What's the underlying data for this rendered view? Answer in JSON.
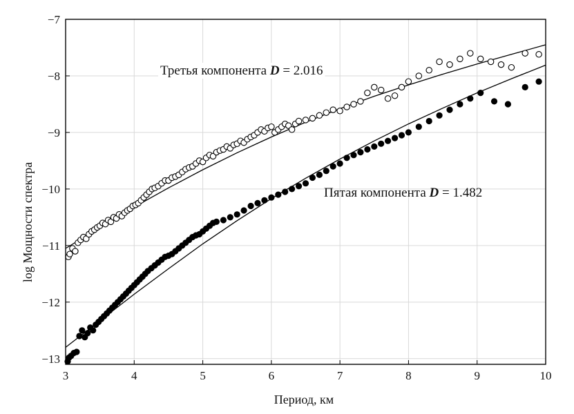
{
  "chart_data": {
    "type": "scatter",
    "title": "",
    "xlabel": "Период, км",
    "ylabel": "log Мощности спектра",
    "xlim": [
      3,
      10
    ],
    "ylim": [
      -13.1,
      -7
    ],
    "xticks": [
      3,
      4,
      5,
      6,
      7,
      8,
      9,
      10
    ],
    "yticks": [
      -13,
      -12,
      -11,
      -10,
      -9,
      -8,
      -7
    ],
    "grid": true,
    "annotations": [
      {
        "series": "third",
        "label": "Третья компонента",
        "d_symbol": "D",
        "d_value": "= 2.016"
      },
      {
        "series": "fifth",
        "label": "Пятая компонента",
        "d_symbol": "D",
        "d_value": "= 1.482"
      }
    ],
    "series": [
      {
        "id": "third",
        "marker": "open-circle",
        "color": "#000000",
        "x": [
          3.04,
          3.06,
          3.1,
          3.14,
          3.18,
          3.22,
          3.26,
          3.3,
          3.34,
          3.38,
          3.42,
          3.46,
          3.5,
          3.54,
          3.58,
          3.62,
          3.66,
          3.7,
          3.74,
          3.78,
          3.82,
          3.86,
          3.9,
          3.94,
          3.98,
          4.02,
          4.06,
          4.1,
          4.14,
          4.18,
          4.22,
          4.26,
          4.3,
          4.35,
          4.4,
          4.45,
          4.5,
          4.55,
          4.6,
          4.65,
          4.7,
          4.75,
          4.8,
          4.85,
          4.9,
          4.95,
          5.0,
          5.05,
          5.1,
          5.15,
          5.2,
          5.25,
          5.3,
          5.35,
          5.4,
          5.45,
          5.5,
          5.55,
          5.6,
          5.65,
          5.7,
          5.75,
          5.8,
          5.85,
          5.9,
          5.95,
          6.0,
          6.05,
          6.1,
          6.15,
          6.2,
          6.25,
          6.3,
          6.35,
          6.4,
          6.5,
          6.6,
          6.7,
          6.8,
          6.9,
          7.0,
          7.1,
          7.2,
          7.3,
          7.4,
          7.5,
          7.6,
          7.7,
          7.8,
          7.9,
          8.0,
          8.15,
          8.3,
          8.45,
          8.6,
          8.75,
          8.9,
          9.05,
          9.2,
          9.35,
          9.5,
          9.7,
          9.9
        ],
        "y": [
          -11.2,
          -11.15,
          -11.05,
          -11.1,
          -10.95,
          -10.9,
          -10.85,
          -10.88,
          -10.8,
          -10.75,
          -10.72,
          -10.68,
          -10.65,
          -10.6,
          -10.62,
          -10.55,
          -10.58,
          -10.5,
          -10.52,
          -10.45,
          -10.48,
          -10.42,
          -10.38,
          -10.35,
          -10.3,
          -10.28,
          -10.25,
          -10.2,
          -10.15,
          -10.1,
          -10.05,
          -10.0,
          -9.98,
          -9.95,
          -9.9,
          -9.85,
          -9.85,
          -9.8,
          -9.78,
          -9.75,
          -9.7,
          -9.65,
          -9.62,
          -9.6,
          -9.55,
          -9.5,
          -9.52,
          -9.45,
          -9.4,
          -9.42,
          -9.35,
          -9.32,
          -9.3,
          -9.25,
          -9.28,
          -9.22,
          -9.2,
          -9.15,
          -9.18,
          -9.12,
          -9.08,
          -9.05,
          -9.0,
          -8.95,
          -8.98,
          -8.92,
          -8.9,
          -9.0,
          -8.95,
          -8.9,
          -8.85,
          -8.88,
          -8.95,
          -8.85,
          -8.8,
          -8.78,
          -8.75,
          -8.7,
          -8.65,
          -8.6,
          -8.62,
          -8.55,
          -8.5,
          -8.45,
          -8.3,
          -8.2,
          -8.25,
          -8.4,
          -8.35,
          -8.2,
          -8.1,
          -8.0,
          -7.9,
          -7.75,
          -7.8,
          -7.7,
          -7.6,
          -7.7,
          -7.75,
          -7.8,
          -7.85,
          -7.6,
          -7.62
        ]
      },
      {
        "id": "fifth",
        "marker": "filled-circle",
        "color": "#000000",
        "x": [
          3.03,
          3.05,
          3.08,
          3.12,
          3.16,
          3.2,
          3.24,
          3.28,
          3.32,
          3.36,
          3.4,
          3.44,
          3.48,
          3.52,
          3.56,
          3.6,
          3.64,
          3.68,
          3.72,
          3.76,
          3.8,
          3.84,
          3.88,
          3.92,
          3.96,
          4.0,
          4.04,
          4.08,
          4.12,
          4.16,
          4.2,
          4.25,
          4.3,
          4.35,
          4.4,
          4.45,
          4.5,
          4.55,
          4.6,
          4.65,
          4.7,
          4.75,
          4.8,
          4.85,
          4.9,
          4.95,
          5.0,
          5.05,
          5.1,
          5.15,
          5.2,
          5.3,
          5.4,
          5.5,
          5.6,
          5.7,
          5.8,
          5.9,
          6.0,
          6.1,
          6.2,
          6.3,
          6.4,
          6.5,
          6.6,
          6.7,
          6.8,
          6.9,
          7.0,
          7.1,
          7.2,
          7.3,
          7.4,
          7.5,
          7.6,
          7.7,
          7.8,
          7.9,
          8.0,
          8.15,
          8.3,
          8.45,
          8.6,
          8.75,
          8.9,
          9.05,
          9.25,
          9.45,
          9.7,
          9.9
        ],
        "y": [
          -13.05,
          -12.98,
          -12.95,
          -12.9,
          -12.88,
          -12.6,
          -12.5,
          -12.62,
          -12.55,
          -12.45,
          -12.5,
          -12.4,
          -12.35,
          -12.3,
          -12.25,
          -12.2,
          -12.15,
          -12.1,
          -12.05,
          -12.0,
          -11.95,
          -11.9,
          -11.85,
          -11.8,
          -11.75,
          -11.7,
          -11.65,
          -11.6,
          -11.55,
          -11.5,
          -11.45,
          -11.4,
          -11.35,
          -11.3,
          -11.25,
          -11.2,
          -11.18,
          -11.15,
          -11.1,
          -11.05,
          -11.0,
          -10.95,
          -10.9,
          -10.85,
          -10.82,
          -10.8,
          -10.75,
          -10.7,
          -10.65,
          -10.6,
          -10.58,
          -10.55,
          -10.5,
          -10.45,
          -10.38,
          -10.3,
          -10.25,
          -10.2,
          -10.15,
          -10.1,
          -10.05,
          -10.0,
          -9.95,
          -9.9,
          -9.8,
          -9.75,
          -9.68,
          -9.6,
          -9.55,
          -9.45,
          -9.4,
          -9.35,
          -9.3,
          -9.25,
          -9.2,
          -9.15,
          -9.1,
          -9.05,
          -9.0,
          -8.9,
          -8.8,
          -8.7,
          -8.6,
          -8.5,
          -8.4,
          -8.3,
          -8.45,
          -8.5,
          -8.2,
          -8.1
        ]
      }
    ],
    "fit_lines": [
      {
        "series": "third",
        "x": [
          3.0,
          3.5,
          4.0,
          4.5,
          5.0,
          5.5,
          6.0,
          6.5,
          7.0,
          7.5,
          8.0,
          8.5,
          9.0,
          9.5,
          10.0
        ],
        "y": [
          -11.05,
          -10.68,
          -10.32,
          -9.98,
          -9.66,
          -9.36,
          -9.08,
          -8.82,
          -8.58,
          -8.36,
          -8.16,
          -7.97,
          -7.79,
          -7.62,
          -7.45
        ]
      },
      {
        "series": "fifth",
        "x": [
          3.0,
          3.5,
          4.0,
          4.5,
          5.0,
          5.5,
          6.0,
          6.5,
          7.0,
          7.5,
          8.0,
          8.5,
          9.0,
          9.5,
          10.0
        ],
        "y": [
          -12.8,
          -12.33,
          -11.86,
          -11.41,
          -10.97,
          -10.56,
          -10.17,
          -9.81,
          -9.47,
          -9.15,
          -8.85,
          -8.57,
          -8.3,
          -8.05,
          -7.81
        ]
      }
    ]
  }
}
